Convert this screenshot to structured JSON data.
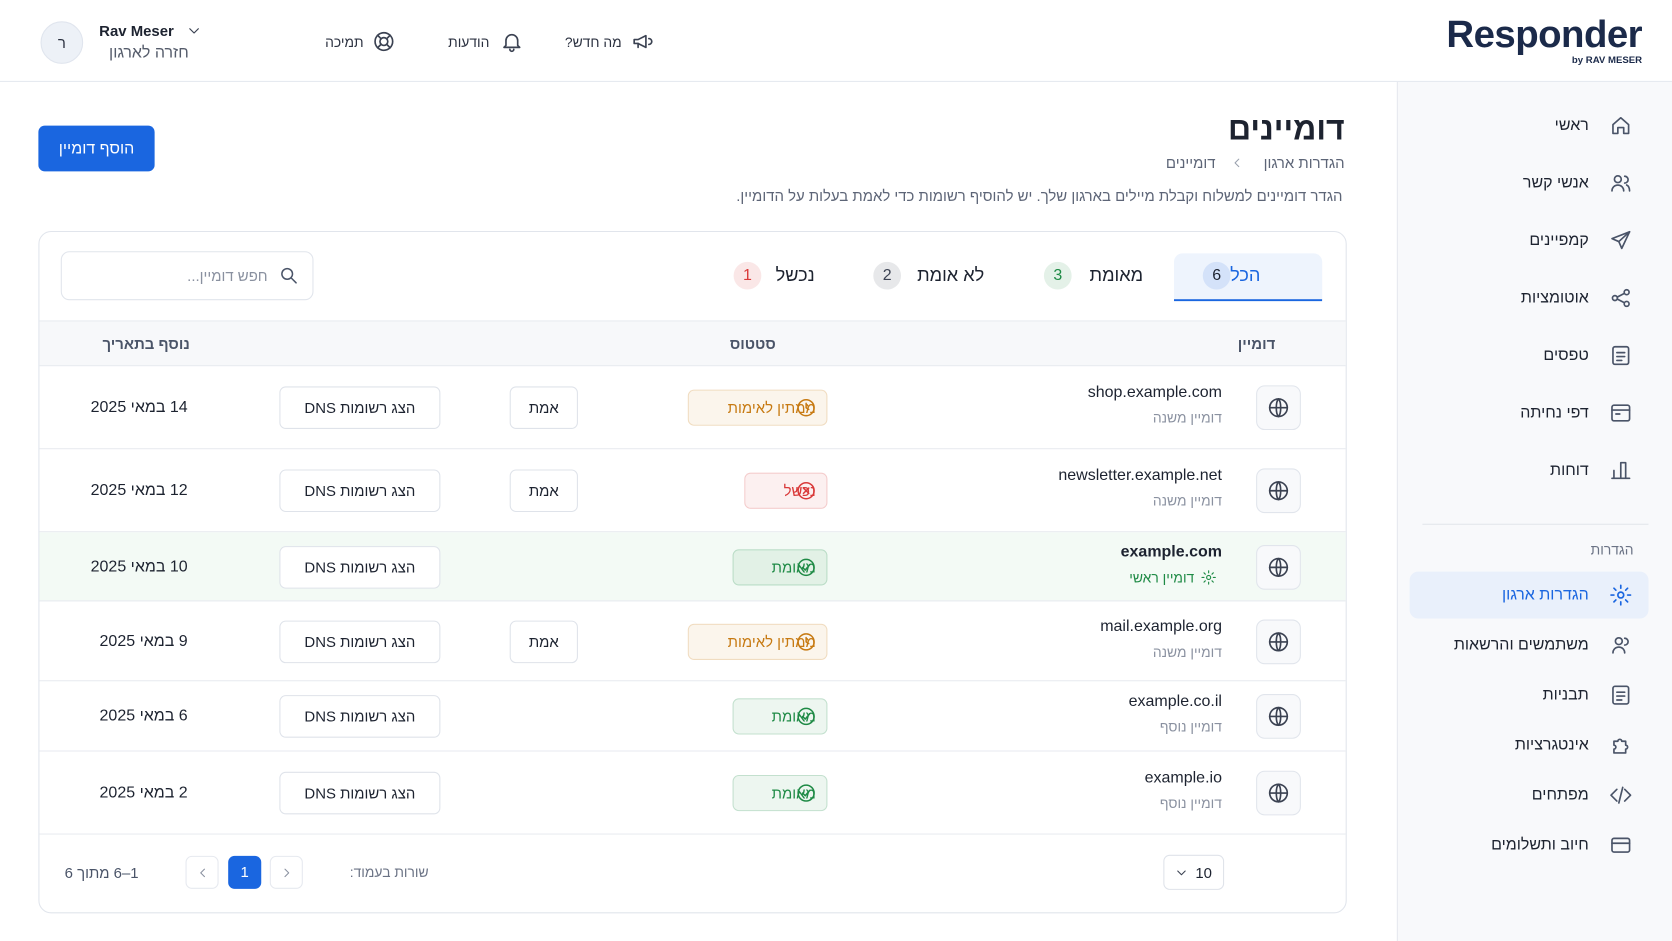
{
  "header": {
    "logo": "Responder",
    "logo_sub": "by RAV MESER",
    "links": [
      "מה חדש?",
      "הודעות",
      "תמיכה"
    ],
    "user_initial": "ר",
    "user_name": "Rav Meser",
    "user_sub": "חזרה לארגון"
  },
  "sidebar": {
    "main": [
      "ראשי",
      "אנשי קשר",
      "קמפיינים",
      "אוטומציות",
      "טפסים",
      "דפי נחיתה",
      "דוחות"
    ],
    "settings_title": "הגדרות",
    "settings": [
      "הגדרות ארגון",
      "משתמשים והרשאות",
      "תבניות",
      "אינטגרציות",
      "מפתחים",
      "חיוב ותשלומים"
    ],
    "active_settings": 0
  },
  "page": {
    "title": "דומיינים",
    "breadcrumb": [
      "הגדרות ארגון",
      "דומיינים"
    ],
    "description": "הגדר דומיינים למשלוח וקבלת מיילים בארגון שלך. יש להוסיף רשומות כדי לאמת בעלות על הדומיין.",
    "add_button": "הוסף דומיין"
  },
  "tabs": [
    {
      "label": "הכל",
      "count": 6,
      "color": "#1a66e0"
    },
    {
      "label": "מאומת",
      "count": 3,
      "color": "#1e8a45"
    },
    {
      "label": "לא אומת",
      "count": 2,
      "color": "#3b4252"
    },
    {
      "label": "נכשל",
      "count": 1,
      "color": "#d93a3a"
    }
  ],
  "active_tab": 0,
  "search_placeholder": "חפש דומיין...",
  "table": {
    "headers": [
      "דומיין",
      "סטטוס",
      "נוסף בתאריך"
    ],
    "rows": [
      {
        "domain": "shop.example.com",
        "kind": "דומיין משנה",
        "status": "ממתין לאימות",
        "status_color": "#c77a12",
        "verify": "אמת",
        "dns": "הצג רשומות DNS",
        "date": "14 במאי 2025"
      },
      {
        "domain": "newsletter.example.net",
        "kind": "דומיין משנה",
        "status": "נכשל",
        "status_color": "#d93a3a",
        "verify": "אמת",
        "dns": "הצג רשומות DNS",
        "date": "12 במאי 2025"
      },
      {
        "domain": "example.com",
        "kind": "דומיין ראשי",
        "primary": true,
        "status": "מאומת",
        "status_color": "#1e8a45",
        "dns": "הצג רשומות DNS",
        "date": "10 במאי 2025"
      },
      {
        "domain": "mail.example.org",
        "kind": "דומיין משנה",
        "status": "ממתין לאימות",
        "status_color": "#c77a12",
        "verify": "אמת",
        "dns": "הצג רשומות DNS",
        "date": "9 במאי 2025"
      },
      {
        "domain": "example.co.il",
        "kind": "דומיין נוסף",
        "status": "מאומת",
        "status_color": "#1e8a45",
        "dns": "הצג רשומות DNS",
        "date": "6 במאי 2025"
      },
      {
        "domain": "example.io",
        "kind": "דומיין נוסף",
        "status": "מאומת",
        "status_color": "#1e8a45",
        "dns": "הצג רשומות DNS",
        "date": "2 במאי 2025"
      }
    ]
  },
  "pagination": {
    "rows_label": "שורות בעמוד:",
    "rows_per_page": 10,
    "page": 1,
    "range": "1–6 מתוך 6"
  }
}
